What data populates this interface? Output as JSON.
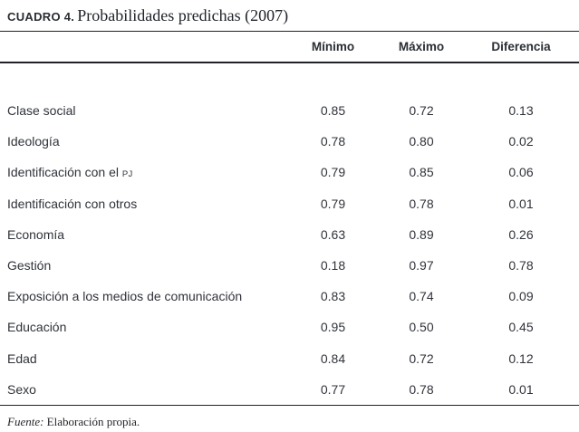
{
  "title": {
    "label": "CUADRO 4.",
    "text": "Probabilidades predichas (2007)"
  },
  "table": {
    "columns": [
      "Mínimo",
      "Máximo",
      "Diferencia"
    ],
    "rows": [
      {
        "label": "Clase social",
        "suffix": "",
        "min": "0.85",
        "max": "0.72",
        "dif": "0.13"
      },
      {
        "label": "Ideología",
        "suffix": "",
        "min": "0.78",
        "max": "0.80",
        "dif": "0.02"
      },
      {
        "label": "Identificación con el ",
        "suffix": "PJ",
        "min": "0.79",
        "max": "0.85",
        "dif": "0.06"
      },
      {
        "label": "Identificación con otros",
        "suffix": "",
        "min": "0.79",
        "max": "0.78",
        "dif": "0.01"
      },
      {
        "label": "Economía",
        "suffix": "",
        "min": "0.63",
        "max": "0.89",
        "dif": "0.26"
      },
      {
        "label": "Gestión",
        "suffix": "",
        "min": "0.18",
        "max": "0.97",
        "dif": "0.78"
      },
      {
        "label": "Exposición a los medios de comunicación",
        "suffix": "",
        "min": "0.83",
        "max": "0.74",
        "dif": "0.09"
      },
      {
        "label": "Educación",
        "suffix": "",
        "min": "0.95",
        "max": "0.50",
        "dif": "0.45"
      },
      {
        "label": "Edad",
        "suffix": "",
        "min": "0.84",
        "max": "0.72",
        "dif": "0.12"
      },
      {
        "label": "Sexo",
        "suffix": "",
        "min": "0.77",
        "max": "0.78",
        "dif": "0.01"
      }
    ]
  },
  "footer": {
    "source_label": "Fuente:",
    "source_text": " Elaboración propia."
  },
  "colors": {
    "text": "#30333a",
    "rule": "#212329"
  }
}
